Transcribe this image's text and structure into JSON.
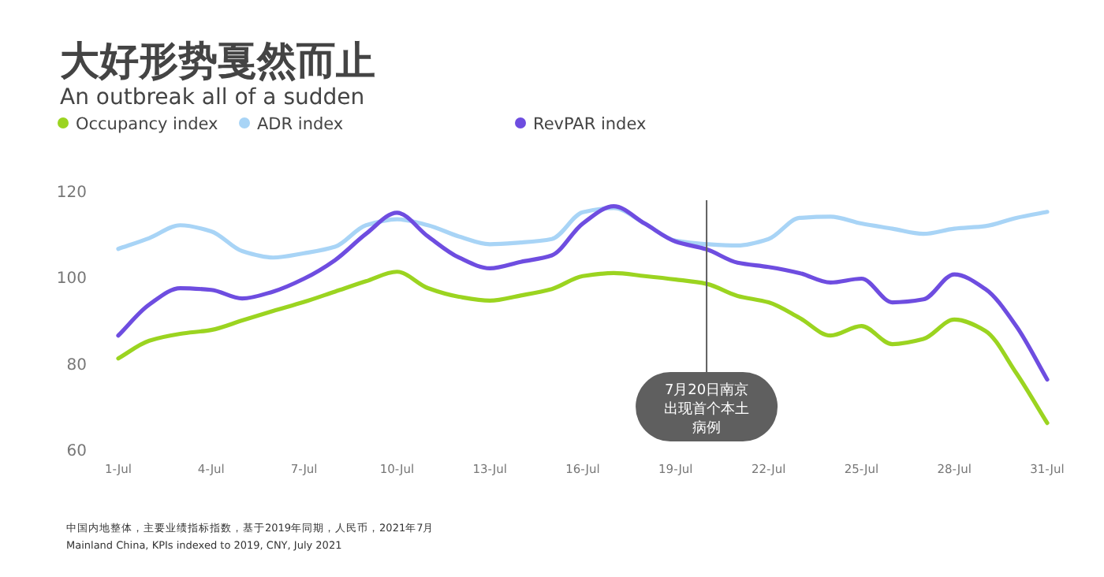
{
  "chart_data": {
    "type": "line",
    "title": "大好形势戛然而止",
    "subtitle": "An outbreak all of a sudden",
    "x": [
      "--07-01",
      "--07-02",
      "--07-03",
      "--07-04",
      "--07-05",
      "--07-06",
      "--07-07",
      "--07-08",
      "--07-09",
      "--07-10",
      "--07-11",
      "--07-12",
      "--07-13",
      "--07-14",
      "--07-15",
      "--07-16",
      "--07-17",
      "--07-18",
      "--07-19",
      "--07-20",
      "--07-21",
      "--07-22",
      "--07-23",
      "--07-24",
      "--07-25",
      "--07-26",
      "--07-27",
      "--07-28",
      "--07-29",
      "--07-30",
      "--07-31"
    ],
    "xlim": [
      "--07-01",
      "--07-31"
    ],
    "xticks": [
      {
        "value": "--07-01",
        "label": "1-Jul"
      },
      {
        "value": "--07-04",
        "label": "4-Jul"
      },
      {
        "value": "--07-07",
        "label": "7-Jul"
      },
      {
        "value": "--07-10",
        "label": "10-Jul"
      },
      {
        "value": "--07-13",
        "label": "13-Jul"
      },
      {
        "value": "--07-16",
        "label": "16-Jul"
      },
      {
        "value": "--07-19",
        "label": "19-Jul"
      },
      {
        "value": "--07-22",
        "label": "22-Jul"
      },
      {
        "value": "--07-25",
        "label": "25-Jul"
      },
      {
        "value": "--07-28",
        "label": "28-Jul"
      },
      {
        "value": "--07-31",
        "label": "31-Jul"
      }
    ],
    "ylim": [
      60,
      120
    ],
    "yticks": [
      60,
      80,
      100,
      120
    ],
    "grid": false,
    "legend": "top left",
    "marker": "none",
    "line_style": "solid",
    "series": [
      {
        "name": "Occupancy index",
        "color": "#9bd420",
        "values": [
          81.1,
          85.2,
          86.8,
          87.7,
          89.9,
          92.1,
          94.2,
          96.6,
          99,
          101.2,
          97.4,
          95.4,
          94.5,
          95.7,
          97.2,
          100.2,
          100.9,
          100.2,
          99.4,
          98.4,
          95.6,
          94.1,
          90.5,
          86.4,
          88.6,
          84.4,
          85.6,
          90.1,
          87.5,
          77.7,
          66.1
        ]
      },
      {
        "name": "ADR index",
        "color": "#a8d4f6",
        "values": [
          106.5,
          109,
          112,
          110.6,
          106,
          104.5,
          105.5,
          107,
          112,
          113.4,
          112,
          109.4,
          107.6,
          108,
          108.8,
          115,
          116,
          112.4,
          108.4,
          107.6,
          107.3,
          108.8,
          113.7,
          114,
          112.4,
          111.2,
          110,
          111.2,
          111.8,
          113.7,
          115.1
        ]
      },
      {
        "name": "RevPAR index",
        "color": "#6e4de0",
        "values": [
          86.4,
          93.6,
          97.4,
          97,
          95,
          96.6,
          99.6,
          103.9,
          110,
          114.9,
          109.4,
          104.5,
          102,
          103.5,
          105,
          112.4,
          116.4,
          112.4,
          108.2,
          106.4,
          103.3,
          102.3,
          100.9,
          98.7,
          99.6,
          94.1,
          94.8,
          100.6,
          97.2,
          88.6,
          76.2
        ]
      }
    ],
    "ref_lines": [
      {
        "axis": "x",
        "value": "--07-20",
        "label": "7月20日南京出现首个本土病例",
        "color": "#5f5f5f"
      }
    ],
    "annotations": [
      "中国内地整体，主要业绩指标指数，基于2019年同期，人民币，2021年7月",
      "Mainland China, KPIs indexed to 2019, CNY, July 2021"
    ]
  }
}
